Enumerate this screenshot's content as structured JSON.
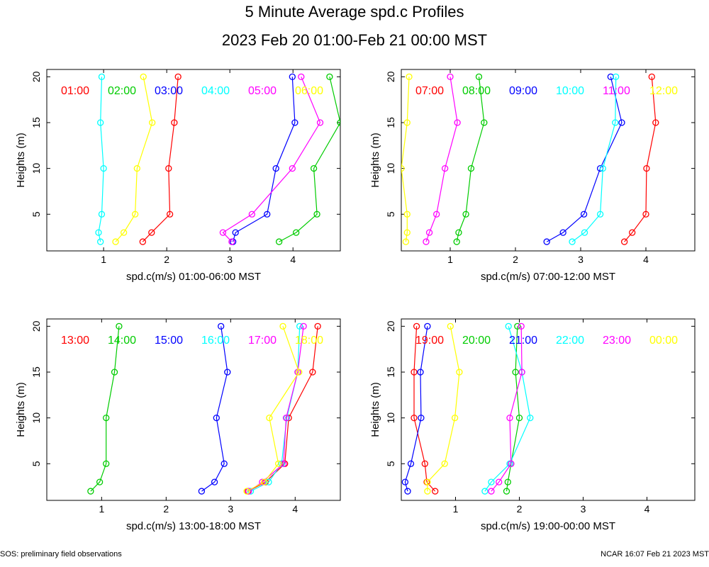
{
  "title": "5 Minute Average spd.c Profiles",
  "subtitle": "2023 Feb 20 01:00-Feb 21 00:00 MST",
  "footer_left": "SOS: preliminary field observations",
  "footer_right": "NCAR 16:07 Feb 21 2023 MST",
  "colors": [
    "#ff0000",
    "#00cc00",
    "#0000ff",
    "#00ffff",
    "#ff00ff",
    "#ffff00"
  ],
  "chart_data": [
    {
      "type": "line",
      "xlabel": "spd.c(m/s) 01:00-06:00 MST",
      "ylabel": "Heights (m)",
      "xlim": [
        0.1,
        4.75
      ],
      "ylim": [
        1,
        20.8
      ],
      "xticks": [
        1,
        2,
        3,
        4
      ],
      "yticks": [
        5,
        10,
        15,
        20
      ],
      "heights": [
        2,
        3,
        5,
        10,
        15,
        20
      ],
      "series": [
        {
          "name": "01:00",
          "values": [
            1.62,
            1.76,
            2.05,
            2.03,
            2.12,
            2.18
          ]
        },
        {
          "name": "02:00",
          "values": [
            3.78,
            4.05,
            4.38,
            4.33,
            4.75,
            4.58
          ]
        },
        {
          "name": "03:00",
          "values": [
            3.05,
            3.09,
            3.59,
            3.73,
            4.03,
            3.99
          ]
        },
        {
          "name": "04:00",
          "values": [
            0.95,
            0.92,
            0.97,
            1.0,
            0.95,
            0.97
          ]
        },
        {
          "name": "05:00",
          "values": [
            3.03,
            2.89,
            3.35,
            3.99,
            4.43,
            4.13
          ]
        },
        {
          "name": "06:00",
          "values": [
            1.19,
            1.32,
            1.5,
            1.53,
            1.77,
            1.63
          ]
        }
      ]
    },
    {
      "type": "line",
      "xlabel": "spd.c(m/s) 07:00-12:00 MST",
      "ylabel": "Heights (m)",
      "xlim": [
        0.25,
        4.75
      ],
      "ylim": [
        1,
        20.8
      ],
      "xticks": [
        1,
        2,
        3,
        4
      ],
      "yticks": [
        5,
        10,
        15,
        20
      ],
      "heights": [
        2,
        3,
        5,
        10,
        15,
        20
      ],
      "series": [
        {
          "name": "07:00",
          "values": [
            3.67,
            3.79,
            4.0,
            4.01,
            4.15,
            4.09
          ]
        },
        {
          "name": "08:00",
          "values": [
            1.1,
            1.13,
            1.24,
            1.32,
            1.52,
            1.44
          ]
        },
        {
          "name": "09:00",
          "values": [
            2.48,
            2.73,
            3.05,
            3.3,
            3.63,
            3.46
          ]
        },
        {
          "name": "10:00",
          "values": [
            2.87,
            3.06,
            3.3,
            3.34,
            3.53,
            3.54
          ]
        },
        {
          "name": "11:00",
          "values": [
            0.63,
            0.68,
            0.79,
            0.92,
            1.11,
            1.0
          ]
        },
        {
          "name": "12:00",
          "values": [
            0.32,
            0.34,
            0.34,
            0.25,
            0.34,
            0.37
          ]
        }
      ]
    },
    {
      "type": "line",
      "xlabel": "spd.c(m/s) 13:00-18:00 MST",
      "ylabel": "Heights (m)",
      "xlim": [
        0.15,
        4.7
      ],
      "ylim": [
        1,
        20.8
      ],
      "xticks": [
        1,
        2,
        3,
        4
      ],
      "yticks": [
        5,
        10,
        15,
        20
      ],
      "heights": [
        2,
        3,
        5,
        10,
        15,
        20
      ],
      "series": [
        {
          "name": "13:00",
          "values": [
            3.27,
            3.54,
            3.84,
            3.9,
            4.27,
            4.35
          ]
        },
        {
          "name": "14:00",
          "values": [
            0.83,
            0.97,
            1.07,
            1.07,
            1.2,
            1.27
          ]
        },
        {
          "name": "15:00",
          "values": [
            2.55,
            2.75,
            2.9,
            2.78,
            2.95,
            2.85
          ]
        },
        {
          "name": "16:00",
          "values": [
            3.31,
            3.59,
            3.79,
            3.87,
            4.04,
            4.07
          ]
        },
        {
          "name": "17:00",
          "values": [
            3.28,
            3.49,
            3.82,
            3.86,
            4.04,
            4.13
          ]
        },
        {
          "name": "18:00",
          "values": [
            3.25,
            3.52,
            3.74,
            3.6,
            4.06,
            3.81
          ]
        }
      ]
    },
    {
      "type": "line",
      "xlabel": "spd.c(m/s) 19:00-00:00 MST",
      "ylabel": "Heights (m)",
      "xlim": [
        0.15,
        4.75
      ],
      "ylim": [
        1,
        20.8
      ],
      "xticks": [
        1,
        2,
        3,
        4
      ],
      "yticks": [
        5,
        10,
        15,
        20
      ],
      "heights": [
        2,
        3,
        5,
        10,
        15,
        20
      ],
      "series": [
        {
          "name": "19:00",
          "values": [
            0.68,
            0.55,
            0.52,
            0.35,
            0.35,
            0.39
          ]
        },
        {
          "name": "20:00",
          "values": [
            1.8,
            1.82,
            1.87,
            2.0,
            1.94,
            1.97
          ]
        },
        {
          "name": "21:00",
          "values": [
            0.25,
            0.21,
            0.3,
            0.46,
            0.45,
            0.56
          ]
        },
        {
          "name": "22:00",
          "values": [
            1.46,
            1.56,
            1.85,
            2.17,
            2.04,
            1.83
          ]
        },
        {
          "name": "23:00",
          "values": [
            1.56,
            1.68,
            1.87,
            1.85,
            2.04,
            2.03
          ]
        },
        {
          "name": "00:00",
          "values": [
            0.56,
            0.56,
            0.83,
            0.99,
            1.06,
            0.92
          ]
        }
      ]
    }
  ]
}
